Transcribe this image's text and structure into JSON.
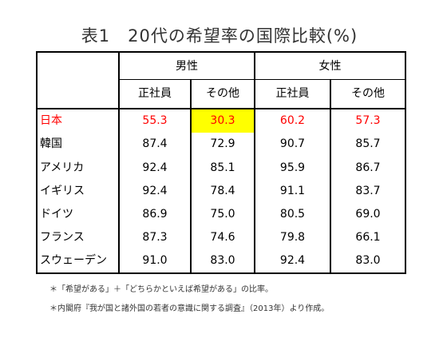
{
  "title": "表1　20代の希望率の国際比較(%)",
  "table": {
    "group_headers": [
      "男性",
      "女性"
    ],
    "sub_headers": [
      "正社員",
      "その他",
      "正社員",
      "その他"
    ],
    "rows": [
      {
        "country": "日本",
        "values": [
          "55.3",
          "30.3",
          "60.2",
          "57.3"
        ]
      },
      {
        "country": "韓国",
        "values": [
          "87.4",
          "72.9",
          "90.7",
          "85.7"
        ]
      },
      {
        "country": "アメリカ",
        "values": [
          "92.4",
          "85.1",
          "95.9",
          "86.7"
        ]
      },
      {
        "country": "イギリス",
        "values": [
          "92.4",
          "78.4",
          "91.1",
          "83.7"
        ]
      },
      {
        "country": "ドイツ",
        "values": [
          "86.9",
          "75.0",
          "80.5",
          "69.0"
        ]
      },
      {
        "country": "フランス",
        "values": [
          "87.3",
          "74.6",
          "79.8",
          "66.1"
        ]
      },
      {
        "country": "スウェーデン",
        "values": [
          "91.0",
          "83.0",
          "92.4",
          "83.0"
        ]
      }
    ],
    "highlight_color": "#ffff00",
    "emphasis_color": "#ff0000"
  },
  "notes": [
    "＊「希望がある」＋「どちらかといえば希望がある」の比率。",
    "＊内閣府『我が国と諸外国の若者の意識に関する調査』（2013年）より作成。"
  ]
}
